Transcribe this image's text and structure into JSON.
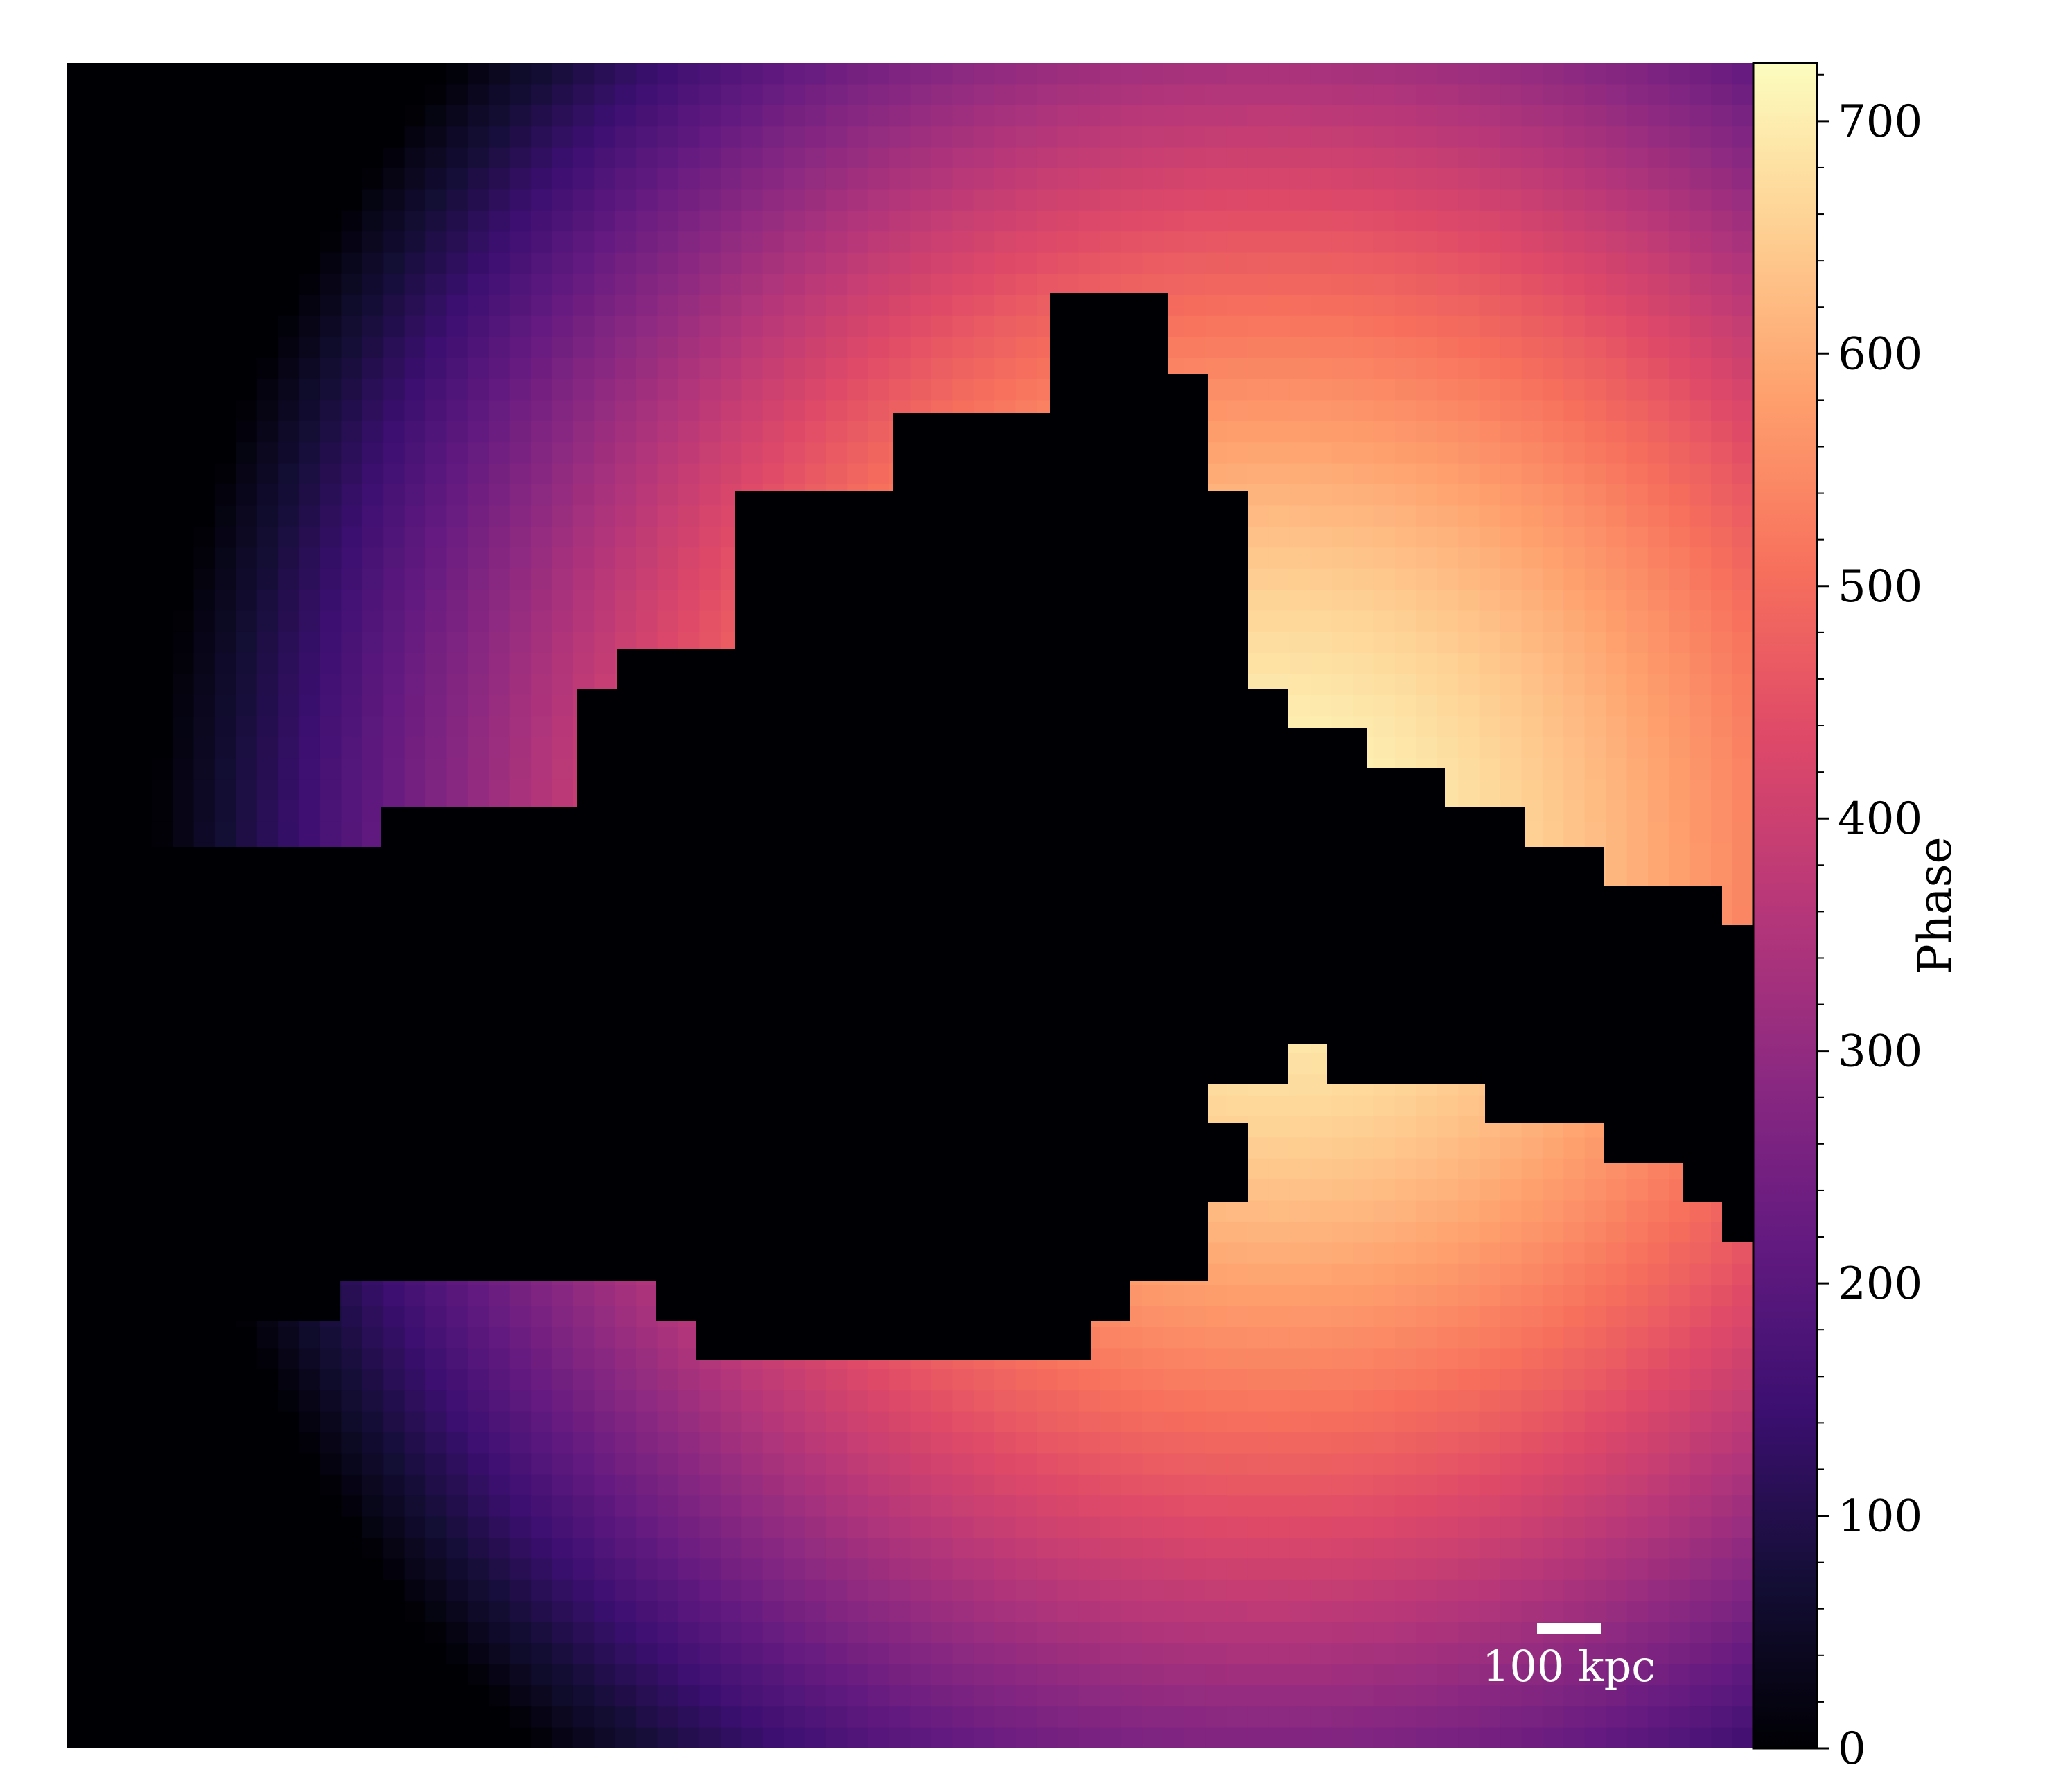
{
  "chart_data": {
    "type": "heatmap",
    "colormap": "magma",
    "colorbar": {
      "label": "Phase",
      "vmin": 0,
      "vmax": 725,
      "ticks": [
        0,
        100,
        200,
        300,
        400,
        500,
        600,
        700
      ],
      "tick_labels": [
        "0",
        "100",
        "200",
        "300",
        "400",
        "500",
        "600",
        "700"
      ]
    },
    "field": {
      "description": "radial phase gradient",
      "peak_value": 725
    },
    "mask_color": "#000004",
    "scalebar": {
      "label": "100 kpc",
      "color": "#ffffff"
    }
  }
}
